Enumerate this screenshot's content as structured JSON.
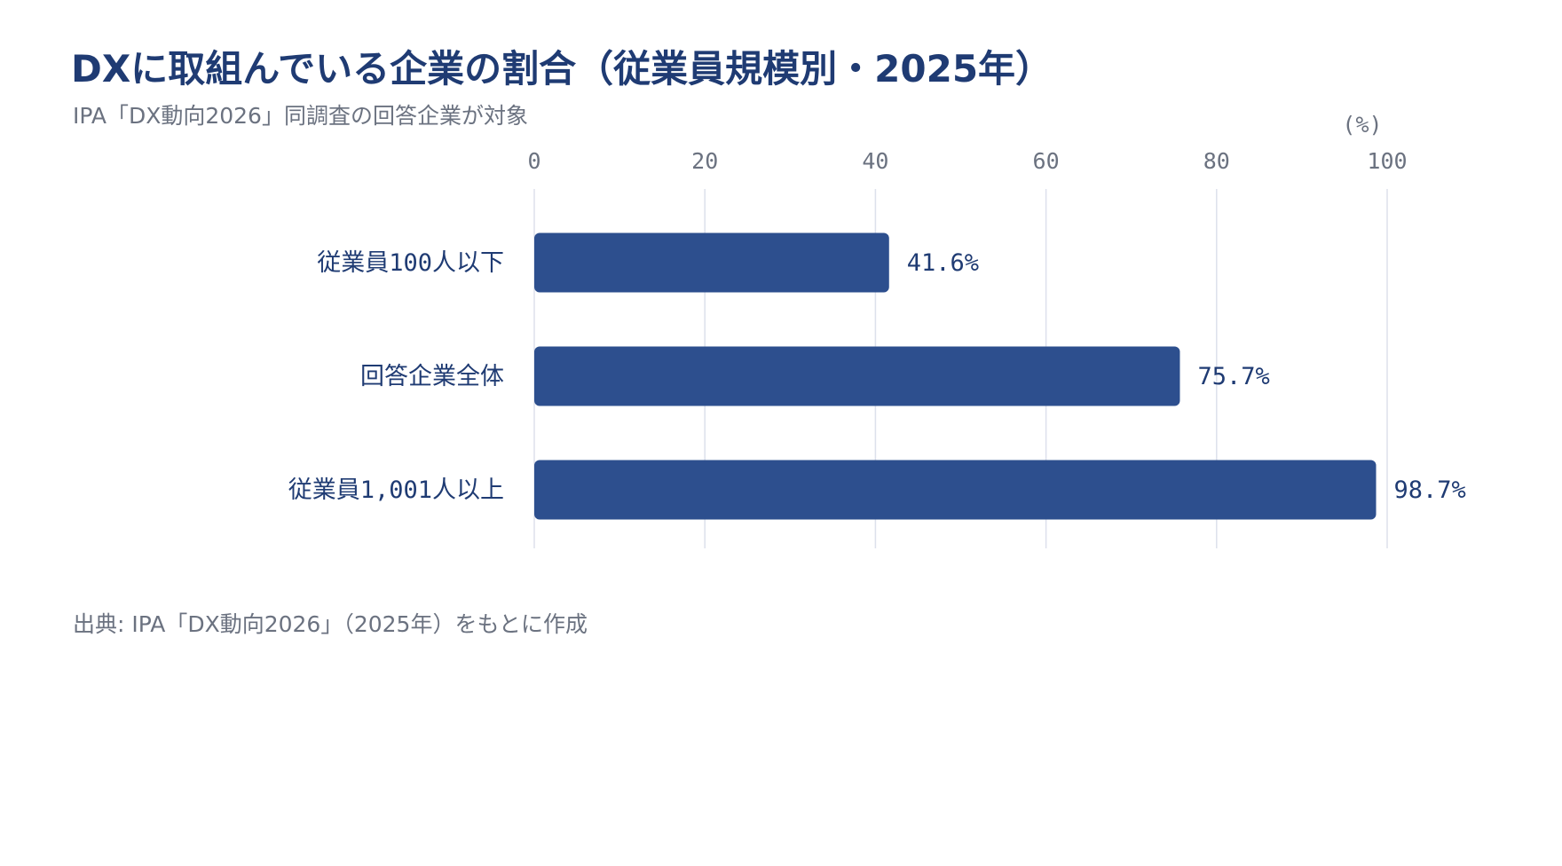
{
  "header": {
    "title": "DXに取組んでいる企業の割合（従業員規模別・2025年）",
    "subtitle": "IPA「DX動向2026」同調査の回答企業が対象"
  },
  "footer": {
    "source": "出典: IPA「DX動向2026」（2025年）をもとに作成"
  },
  "chart_data": {
    "type": "bar",
    "orientation": "horizontal",
    "title": "DXに取組んでいる企業の割合（従業員規模別・2025年）",
    "subtitle": "IPA「DX動向2026」同調査の回答企業が対象",
    "unit_label": "(%)",
    "categories": [
      "従業員100人以下",
      "回答企業全体",
      "従業員1,001人以上"
    ],
    "values": [
      41.6,
      75.7,
      98.7
    ],
    "value_labels": [
      "41.6%",
      "75.7%",
      "98.7%"
    ],
    "xlim": [
      0,
      100
    ],
    "xticks": [
      "0",
      "20",
      "40",
      "60",
      "80",
      "100"
    ],
    "xtick_values": [
      0,
      20,
      40,
      60,
      80,
      100
    ],
    "axis_position": "top",
    "grid": true,
    "legend": "none",
    "colors": {
      "bar": "#2d4f8e",
      "grid": "#dde1ec",
      "tick_text": "#6b7280",
      "category_text": "#1f3b73",
      "value_text": "#1f3b73"
    }
  }
}
